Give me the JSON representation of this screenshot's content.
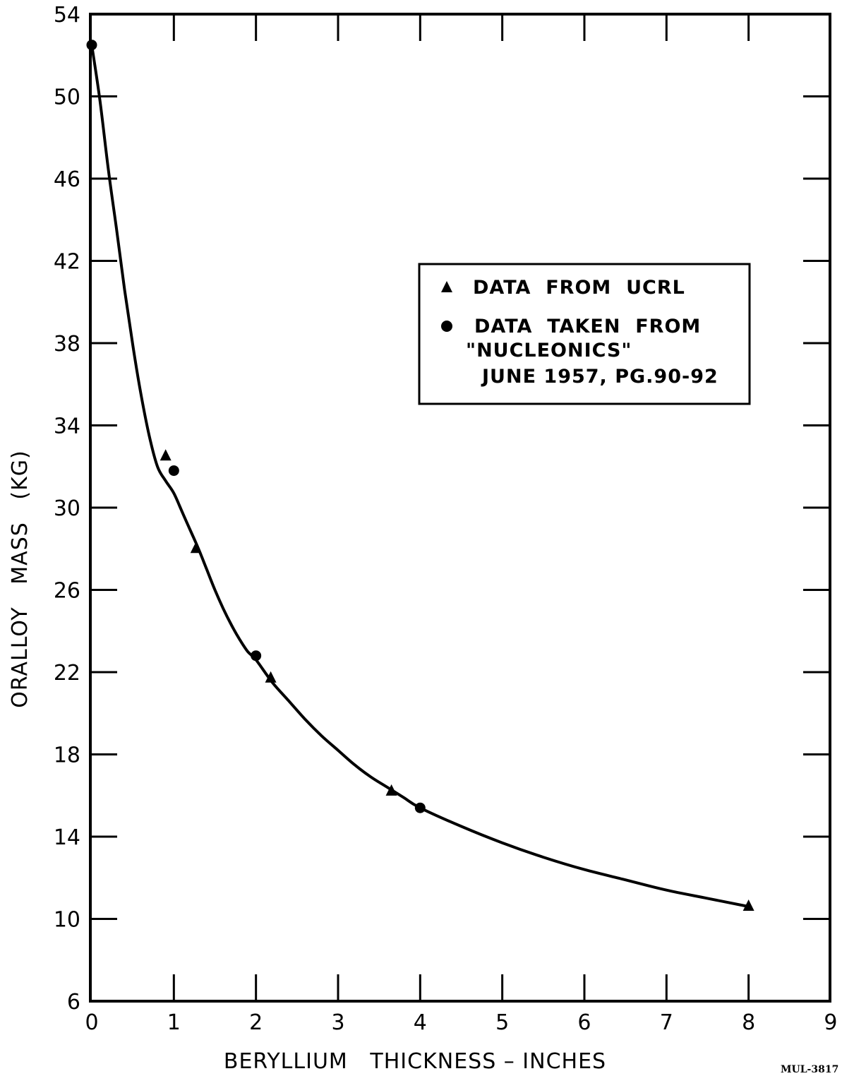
{
  "chart_data": {
    "type": "scatter",
    "title": "",
    "xlabel": "BERYLLIUM   THICKNESS – INCHES",
    "ylabel": "ORALLOY   MASS   (KG)",
    "xlim": [
      0,
      9
    ],
    "ylim": [
      6,
      54
    ],
    "x_ticks": [
      0,
      1,
      2,
      3,
      4,
      5,
      6,
      7,
      8,
      9
    ],
    "y_ticks": [
      6,
      10,
      14,
      18,
      22,
      26,
      30,
      34,
      38,
      42,
      46,
      50,
      54
    ],
    "grid": false,
    "legend_position": "upper-right",
    "series": [
      {
        "name": "DATA  FROM  UCRL",
        "marker": "triangle",
        "points": [
          {
            "x": 0.9,
            "y": 32.5
          },
          {
            "x": 1.27,
            "y": 28.0
          },
          {
            "x": 2.18,
            "y": 21.7
          },
          {
            "x": 3.65,
            "y": 16.2
          },
          {
            "x": 8.0,
            "y": 10.6
          }
        ]
      },
      {
        "name": "DATA  TAKEN  FROM\n\"NUCLEONICS\"\nJUNE 1957, PG.90-92",
        "marker": "circle",
        "points": [
          {
            "x": 0.0,
            "y": 52.5
          },
          {
            "x": 1.0,
            "y": 31.8
          },
          {
            "x": 2.0,
            "y": 22.8
          },
          {
            "x": 4.0,
            "y": 15.4
          }
        ]
      }
    ],
    "curve": {
      "x": [
        0,
        0.1,
        0.2,
        0.3,
        0.4,
        0.5,
        0.6,
        0.7,
        0.8,
        0.9,
        1.0,
        1.1,
        1.2,
        1.3,
        1.4,
        1.5,
        1.6,
        1.7,
        1.8,
        1.9,
        2.0,
        2.2,
        2.4,
        2.6,
        2.8,
        3.0,
        3.2,
        3.4,
        3.6,
        3.8,
        4.0,
        4.5,
        5.0,
        5.5,
        6.0,
        6.5,
        7.0,
        7.5,
        8.0
      ],
      "y": [
        52.5,
        49.8,
        46.5,
        43.6,
        40.6,
        37.9,
        35.5,
        33.5,
        32.0,
        31.3,
        30.7,
        29.8,
        28.9,
        28.0,
        27.0,
        26.0,
        25.1,
        24.3,
        23.6,
        23.0,
        22.6,
        21.5,
        20.6,
        19.7,
        18.9,
        18.2,
        17.5,
        16.9,
        16.4,
        15.9,
        15.4,
        14.5,
        13.7,
        13.0,
        12.4,
        11.9,
        11.4,
        11.0,
        10.6
      ]
    }
  },
  "ref_code": "MUL-3817"
}
